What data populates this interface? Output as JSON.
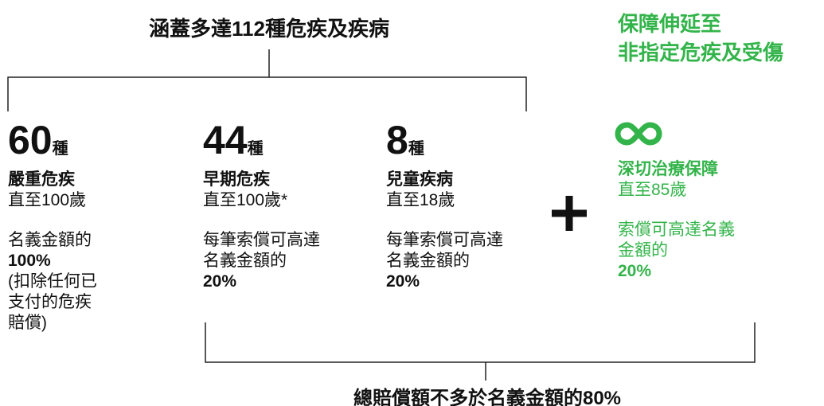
{
  "top_heading": "涵蓋多達112種危疾及疾病",
  "right_heading": [
    "保障伸延至",
    "非指定危疾及受傷"
  ],
  "columns": [
    {
      "count": "60",
      "unit": "種",
      "name": "嚴重危疾",
      "term": "直至100歲",
      "desc": [
        "名義金額的"
      ],
      "amount": "100%",
      "note": [
        "(扣除任何已",
        "支付的危疾",
        "賠償)"
      ]
    },
    {
      "count": "44",
      "unit": "種",
      "name": "早期危疾",
      "term": "直至100歲*",
      "desc": [
        "每筆索償可高達",
        "名義金額的"
      ],
      "amount": "20%"
    },
    {
      "count": "8",
      "unit": "種",
      "name": "兒童疾病",
      "term": "直至18歲",
      "desc": [
        "每筆索償可高達",
        "名義金額的"
      ],
      "amount": "20%"
    }
  ],
  "extra": {
    "name": "深切治療保障",
    "term": "直至85歲",
    "desc": [
      "索償可高達名義",
      "金額的"
    ],
    "amount": "20%"
  },
  "bottom_note": "總賠償額不多於名義金額的80%"
}
